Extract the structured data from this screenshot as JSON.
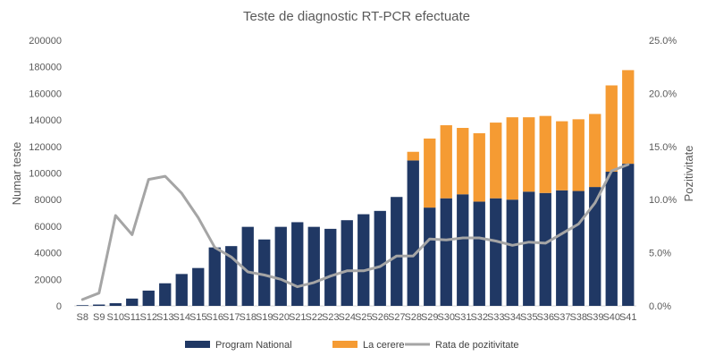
{
  "chart_data": {
    "type": "bar",
    "title": "Teste de diagnostic RT-PCR efectuate",
    "ylabel_left": "Numar teste",
    "ylabel_right": "Pozitivitate",
    "ylim_left": [
      0,
      200000
    ],
    "ylim_right": [
      0,
      0.25
    ],
    "yticks_left": [
      "0",
      "20000",
      "40000",
      "60000",
      "80000",
      "100000",
      "120000",
      "140000",
      "160000",
      "180000",
      "200000"
    ],
    "yticks_right": [
      "0.0%",
      "5.0%",
      "10.0%",
      "15.0%",
      "20.0%",
      "25.0%"
    ],
    "categories": [
      "S8",
      "S9",
      "S10",
      "S11",
      "S12",
      "S13",
      "S14",
      "S15",
      "S16",
      "S17",
      "S18",
      "S19",
      "S20",
      "S21",
      "S22",
      "S23",
      "S24",
      "S25",
      "S26",
      "S27",
      "S28",
      "S29",
      "S30",
      "S31",
      "S32",
      "S33",
      "S34",
      "S35",
      "S36",
      "S37",
      "S38",
      "S39",
      "S40",
      "S41"
    ],
    "stacked": true,
    "grid": false,
    "legend_position": "bottom",
    "series": [
      {
        "name": "Program National",
        "type": "bar",
        "axis": "left",
        "color": "#203864",
        "values": [
          500,
          1000,
          2000,
          5500,
          11500,
          17000,
          24000,
          28500,
          44000,
          45000,
          59500,
          50000,
          59500,
          63000,
          59500,
          58000,
          64500,
          69000,
          71500,
          82000,
          109500,
          74000,
          81000,
          84000,
          78500,
          81000,
          80000,
          86000,
          85000,
          87000,
          86500,
          89500,
          101000,
          107000
        ]
      },
      {
        "name": "La cerere",
        "type": "bar",
        "axis": "left",
        "color": "#F59B33",
        "values": [
          0,
          0,
          0,
          0,
          0,
          0,
          0,
          0,
          0,
          0,
          0,
          0,
          0,
          0,
          0,
          0,
          0,
          0,
          0,
          0,
          6500,
          52000,
          55000,
          50000,
          51500,
          57000,
          62000,
          56000,
          58000,
          52000,
          54000,
          55000,
          65000,
          70500
        ]
      },
      {
        "name": "Rata de pozitivitate",
        "type": "line",
        "axis": "right",
        "color": "#A5A5A5",
        "values": [
          0.006,
          0.012,
          0.085,
          0.067,
          0.119,
          0.122,
          0.106,
          0.083,
          0.055,
          0.046,
          0.032,
          0.029,
          0.025,
          0.018,
          0.022,
          0.028,
          0.033,
          0.033,
          0.037,
          0.047,
          0.047,
          0.063,
          0.062,
          0.064,
          0.064,
          0.061,
          0.057,
          0.06,
          0.059,
          0.068,
          0.077,
          0.097,
          0.127,
          0.133
        ]
      }
    ]
  }
}
